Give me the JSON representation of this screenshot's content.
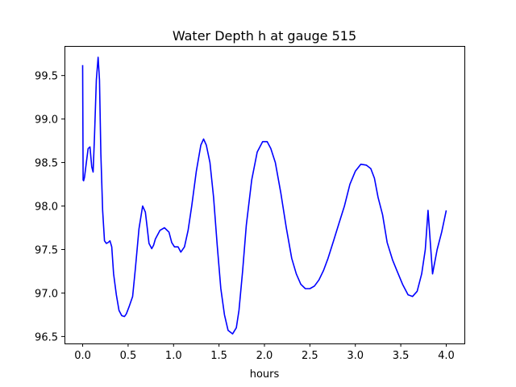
{
  "chart_data": {
    "type": "line",
    "title": "Water Depth h at gauge 515",
    "xlabel": "hours",
    "ylabel": "",
    "xlim": [
      -0.2,
      4.2
    ],
    "ylim": [
      96.42,
      99.84
    ],
    "xticks": [
      0.0,
      0.5,
      1.0,
      1.5,
      2.0,
      2.5,
      3.0,
      3.5,
      4.0
    ],
    "xtick_labels": [
      "0.0",
      "0.5",
      "1.0",
      "1.5",
      "2.0",
      "2.5",
      "3.0",
      "3.5",
      "4.0"
    ],
    "yticks": [
      96.5,
      97.0,
      97.5,
      98.0,
      98.5,
      99.0,
      99.5
    ],
    "ytick_labels": [
      "96.5",
      "97.0",
      "97.5",
      "98.0",
      "98.5",
      "99.0",
      "99.5"
    ],
    "grid": false,
    "series": [
      {
        "color": "#0000ff",
        "x": [
          0.0,
          0.005,
          0.01,
          0.02,
          0.04,
          0.06,
          0.08,
          0.1,
          0.115,
          0.13,
          0.15,
          0.17,
          0.185,
          0.2,
          0.22,
          0.24,
          0.26,
          0.28,
          0.3,
          0.32,
          0.34,
          0.37,
          0.4,
          0.43,
          0.46,
          0.48,
          0.51,
          0.55,
          0.58,
          0.62,
          0.66,
          0.69,
          0.71,
          0.73,
          0.76,
          0.78,
          0.8,
          0.85,
          0.9,
          0.95,
          0.98,
          1.01,
          1.05,
          1.08,
          1.12,
          1.16,
          1.2,
          1.25,
          1.3,
          1.33,
          1.36,
          1.4,
          1.44,
          1.48,
          1.52,
          1.56,
          1.6,
          1.65,
          1.69,
          1.72,
          1.76,
          1.8,
          1.86,
          1.92,
          1.98,
          2.03,
          2.07,
          2.12,
          2.18,
          2.24,
          2.3,
          2.35,
          2.4,
          2.45,
          2.5,
          2.55,
          2.6,
          2.65,
          2.7,
          2.76,
          2.82,
          2.88,
          2.94,
          3.0,
          3.06,
          3.12,
          3.17,
          3.21,
          3.25,
          3.3,
          3.35,
          3.41,
          3.46,
          3.52,
          3.58,
          3.63,
          3.68,
          3.73,
          3.77,
          3.8,
          3.85,
          3.9,
          3.95,
          4.0
        ],
        "y": [
          99.62,
          98.3,
          98.29,
          98.33,
          98.5,
          98.66,
          98.68,
          98.45,
          98.39,
          98.8,
          99.45,
          99.71,
          99.45,
          98.6,
          97.95,
          97.6,
          97.57,
          97.58,
          97.6,
          97.53,
          97.22,
          96.98,
          96.8,
          96.74,
          96.73,
          96.76,
          96.84,
          96.96,
          97.28,
          97.74,
          98.0,
          97.93,
          97.75,
          97.57,
          97.51,
          97.55,
          97.62,
          97.72,
          97.75,
          97.7,
          97.58,
          97.53,
          97.53,
          97.47,
          97.53,
          97.72,
          98.0,
          98.4,
          98.7,
          98.77,
          98.7,
          98.5,
          98.1,
          97.55,
          97.05,
          96.75,
          96.57,
          96.53,
          96.6,
          96.8,
          97.25,
          97.78,
          98.3,
          98.62,
          98.74,
          98.74,
          98.66,
          98.5,
          98.15,
          97.75,
          97.4,
          97.22,
          97.1,
          97.05,
          97.05,
          97.08,
          97.15,
          97.26,
          97.4,
          97.6,
          97.8,
          98.0,
          98.25,
          98.4,
          98.48,
          98.47,
          98.43,
          98.32,
          98.1,
          97.9,
          97.58,
          97.38,
          97.25,
          97.1,
          96.98,
          96.96,
          97.02,
          97.22,
          97.5,
          97.95,
          97.22,
          97.5,
          97.7,
          97.95
        ]
      }
    ]
  }
}
